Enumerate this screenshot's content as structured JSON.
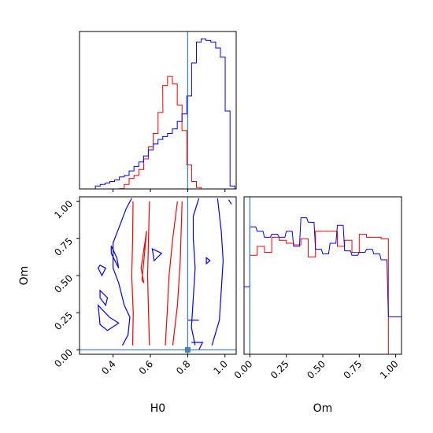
{
  "chart_data": {
    "type": "corner",
    "parameters": [
      "H0",
      "Om"
    ],
    "truth": {
      "H0": 0.8,
      "Om": 0.0
    },
    "colors": {
      "red": "#ff0000",
      "blue": "#0000ff",
      "truth": "#4682b4"
    },
    "h0_hist": {
      "type": "step",
      "xlim": [
        0.22,
        1.06
      ],
      "xticks": [
        "0.4",
        "0.6",
        "0.8",
        "1.0"
      ],
      "series": [
        {
          "color": "#ff0000",
          "x": [
            0.434,
            0.46,
            0.486,
            0.512,
            0.538,
            0.563,
            0.589,
            0.615,
            0.641,
            0.666,
            0.692,
            0.718,
            0.744,
            0.769,
            0.795,
            0.821,
            0.847,
            0.872,
            0.898,
            0.924,
            0.95,
            0.975
          ],
          "values": [
            0.2,
            3,
            7,
            9,
            13,
            20,
            28,
            37,
            51,
            69,
            75,
            70,
            56,
            39,
            16,
            5,
            1,
            0,
            0,
            0,
            0,
            0
          ]
        },
        {
          "color": "#0000ff",
          "x": [
            0.305,
            0.331,
            0.357,
            0.382,
            0.408,
            0.434,
            0.46,
            0.486,
            0.512,
            0.538,
            0.563,
            0.589,
            0.615,
            0.641,
            0.666,
            0.692,
            0.718,
            0.744,
            0.769,
            0.795,
            0.821,
            0.847,
            0.872,
            0.898,
            0.924,
            0.95,
            0.975,
            1.001,
            1.027
          ],
          "values": [
            2,
            3,
            4,
            5,
            6,
            8,
            9,
            12,
            15,
            18,
            22,
            26,
            30,
            33,
            35,
            37,
            40,
            45,
            50,
            62,
            84,
            98,
            100,
            99,
            98,
            94,
            88,
            52,
            2
          ]
        }
      ]
    },
    "contour": {
      "xlabel": "H0",
      "ylabel": "Om",
      "xlim": [
        0.22,
        1.06
      ],
      "ylim": [
        -0.03,
        1.03
      ],
      "xticks": [
        "0.4",
        "0.6",
        "0.8",
        "1.0"
      ],
      "yticks": [
        "0.00",
        "0.25",
        "0.50",
        "0.75",
        "1.00"
      ],
      "red_lines": [
        [
          [
            0.505,
            0.03
          ],
          [
            0.508,
            0.25
          ],
          [
            0.5,
            0.5
          ],
          [
            0.505,
            0.75
          ],
          [
            0.507,
            1.0
          ]
        ],
        [
          [
            0.595,
            0.03
          ],
          [
            0.59,
            0.25
          ],
          [
            0.585,
            0.5
          ],
          [
            0.59,
            0.75
          ],
          [
            0.595,
            1.0
          ]
        ],
        [
          [
            0.68,
            0.03
          ],
          [
            0.69,
            0.25
          ],
          [
            0.7,
            0.5
          ],
          [
            0.72,
            0.75
          ],
          [
            0.745,
            1.0
          ]
        ],
        [
          [
            0.72,
            0.03
          ],
          [
            0.745,
            0.3
          ],
          [
            0.76,
            0.6
          ],
          [
            0.77,
            1.0
          ]
        ]
      ],
      "red_closed": [
        [
          [
            0.555,
            0.47
          ],
          [
            0.58,
            0.8
          ],
          [
            0.55,
            0.55
          ],
          [
            0.565,
            0.45
          ]
        ]
      ],
      "blue_paths": [
        [
          [
            0.45,
            0.03
          ],
          [
            0.48,
            0.1
          ],
          [
            0.49,
            0.22
          ],
          [
            0.46,
            0.3
          ],
          [
            0.43,
            0.45
          ],
          [
            0.4,
            0.55
          ],
          [
            0.4,
            0.72
          ],
          [
            0.44,
            0.85
          ],
          [
            0.47,
            0.95
          ],
          [
            0.5,
            1.02
          ]
        ],
        [
          [
            0.84,
            0.03
          ],
          [
            0.82,
            0.15
          ],
          [
            0.83,
            0.35
          ],
          [
            0.84,
            0.55
          ],
          [
            0.83,
            0.75
          ],
          [
            0.83,
            0.9
          ],
          [
            0.86,
            1.02
          ]
        ],
        [
          [
            0.93,
            0.03
          ],
          [
            0.97,
            0.2
          ],
          [
            0.98,
            0.4
          ],
          [
            0.99,
            0.6
          ],
          [
            0.98,
            0.8
          ],
          [
            0.96,
            1.02
          ]
        ]
      ],
      "blue_closed": [
        [
          [
            0.32,
            0.3
          ],
          [
            0.38,
            0.22
          ],
          [
            0.43,
            0.18
          ],
          [
            0.37,
            0.13
          ],
          [
            0.33,
            0.17
          ],
          [
            0.32,
            0.3
          ]
        ],
        [
          [
            0.33,
            0.57
          ],
          [
            0.36,
            0.55
          ],
          [
            0.34,
            0.5
          ],
          [
            0.32,
            0.55
          ],
          [
            0.33,
            0.57
          ]
        ],
        [
          [
            0.33,
            0.4
          ],
          [
            0.37,
            0.35
          ],
          [
            0.36,
            0.3
          ],
          [
            0.33,
            0.35
          ],
          [
            0.33,
            0.4
          ]
        ],
        [
          [
            0.39,
            0.7
          ],
          [
            0.42,
            0.62
          ],
          [
            0.43,
            0.55
          ],
          [
            0.39,
            0.65
          ],
          [
            0.39,
            0.7
          ]
        ],
        [
          [
            0.61,
            0.68
          ],
          [
            0.66,
            0.65
          ],
          [
            0.62,
            0.6
          ],
          [
            0.61,
            0.68
          ]
        ],
        [
          [
            0.9,
            0.62
          ],
          [
            0.92,
            0.6
          ],
          [
            0.9,
            0.58
          ],
          [
            0.9,
            0.62
          ]
        ],
        [
          [
            0.8,
            0.2
          ],
          [
            0.86,
            0.2
          ]
        ],
        [
          [
            0.82,
            0.05
          ],
          [
            0.88,
            0.05
          ],
          [
            0.86,
            0.0
          ]
        ],
        [
          [
            1.02,
            1.01
          ],
          [
            1.035,
            0.98
          ]
        ]
      ]
    },
    "om_hist": {
      "type": "step",
      "xlabel": "Om",
      "xlim": [
        -0.04,
        1.04
      ],
      "xticks": [
        "0.00",
        "0.25",
        "0.50",
        "0.75",
        "1.00"
      ],
      "series": [
        {
          "color": "#ff0000",
          "x": [
            0.0,
            0.05,
            0.1,
            0.15,
            0.2,
            0.25,
            0.3,
            0.35,
            0.4,
            0.45,
            0.5,
            0.55,
            0.6,
            0.65,
            0.7,
            0.75,
            0.8,
            0.85,
            0.9,
            0.95
          ],
          "values": [
            66,
            72,
            68,
            78,
            76,
            74,
            73,
            77,
            65,
            82,
            82,
            82,
            72,
            76,
            68,
            80,
            78,
            78,
            77,
            0
          ]
        },
        {
          "color": "#0000ff",
          "x": [
            -0.04,
            0.0,
            0.05,
            0.1,
            0.15,
            0.2,
            0.25,
            0.3,
            0.35,
            0.4,
            0.45,
            0.5,
            0.55,
            0.6,
            0.65,
            0.7,
            0.75,
            0.8,
            0.85,
            0.9,
            0.95,
            1.0
          ],
          "values": [
            45,
            85,
            82,
            78,
            80,
            78,
            82,
            72,
            91,
            88,
            70,
            67,
            74,
            86,
            69,
            66,
            68,
            70,
            67,
            63,
            25,
            25
          ]
        }
      ]
    }
  }
}
